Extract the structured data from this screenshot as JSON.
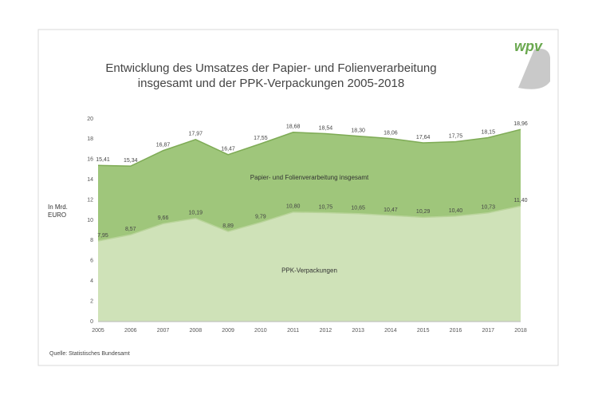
{
  "chart_data": {
    "type": "area",
    "title": "Entwicklung des Umsatzes der Papier- und Folienverarbeitung insgesamt und der PPK-Verpackungen 2005-2018",
    "y_label": "In Mrd. EURO",
    "source": "Quelle: Statistisches Bundesamt",
    "logo": "wpv",
    "categories": [
      "2005",
      "2006",
      "2007",
      "2008",
      "2009",
      "2010",
      "2011",
      "2012",
      "2013",
      "2014",
      "2015",
      "2016",
      "2017",
      "2018"
    ],
    "series": [
      {
        "name": "Papier- und Folienverarbeitung insgesamt",
        "color": "#9fc67b",
        "line_color": "#7eab55",
        "values": [
          15.41,
          15.34,
          16.87,
          17.97,
          16.47,
          17.55,
          18.68,
          18.54,
          18.3,
          18.06,
          17.64,
          17.75,
          18.15,
          18.96
        ],
        "value_labels": [
          "15,41",
          "15,34",
          "16,87",
          "17,97",
          "16,47",
          "17,55",
          "18,68",
          "18,54",
          "18,30",
          "18,06",
          "17,64",
          "17,75",
          "18,15",
          "18,96"
        ]
      },
      {
        "name": "PPK-Verpackungen",
        "color": "#cfe2b8",
        "line_color": "#b9d49a",
        "values": [
          7.95,
          8.57,
          9.66,
          10.19,
          8.89,
          9.79,
          10.8,
          10.75,
          10.65,
          10.47,
          10.29,
          10.4,
          10.73,
          11.4
        ],
        "value_labels": [
          "7,95",
          "8,57",
          "9,66",
          "10,19",
          "8,89",
          "9,79",
          "10,80",
          "10,75",
          "10,65",
          "10,47",
          "10,29",
          "10,40",
          "10,73",
          "11,40"
        ]
      }
    ],
    "ylim": [
      0,
      20
    ],
    "yticks": [
      0,
      2,
      4,
      6,
      8,
      10,
      12,
      14,
      16,
      18,
      20
    ],
    "grid": false
  }
}
